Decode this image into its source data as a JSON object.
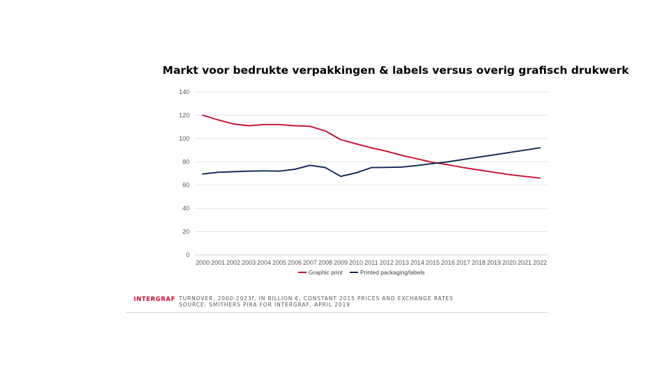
{
  "chart_data": {
    "type": "line",
    "title": "Markt voor bedrukte verpakkingen & labels versus overig grafisch drukwerk",
    "x": [
      "2000",
      "2001",
      "2002",
      "2003",
      "2004",
      "2005",
      "2006",
      "2007",
      "2008",
      "2009",
      "2010",
      "2011",
      "2012",
      "2013",
      "2014",
      "2015",
      "2016",
      "2017",
      "2018",
      "2019",
      "2020",
      "2021",
      "2022"
    ],
    "ylim": [
      0,
      140
    ],
    "yticks": [
      0,
      20,
      40,
      60,
      80,
      100,
      120,
      140
    ],
    "grid": true,
    "legend_position": "bottom",
    "series": [
      {
        "name": "Graphic print",
        "color": "#c8102e",
        "values": [
          120,
          116,
          112.5,
          111,
          112,
          112,
          111,
          110.5,
          106.5,
          99,
          95.5,
          92,
          89,
          85.5,
          82.5,
          79.5,
          77.5,
          75,
          73,
          71,
          69,
          67.5,
          66
        ]
      },
      {
        "name": "Printed packaging/labels",
        "color": "#0d2552",
        "values": [
          69.5,
          71,
          71.5,
          72,
          72.2,
          72,
          73.5,
          77,
          75,
          67.5,
          70.5,
          75,
          75.2,
          75.5,
          76.8,
          78.5,
          80,
          82,
          84,
          86,
          88,
          90,
          92
        ]
      }
    ]
  },
  "footer": {
    "brand": "INTERGRAF",
    "line1": "TURNOVER, 2000-2023f, IN BILLION €, CONSTANT 2015 PRICES AND EXCHANGE RATES",
    "line2": "SOURCE: SMITHERS PIRA FOR INTERGRAF, APRIL 2019"
  }
}
